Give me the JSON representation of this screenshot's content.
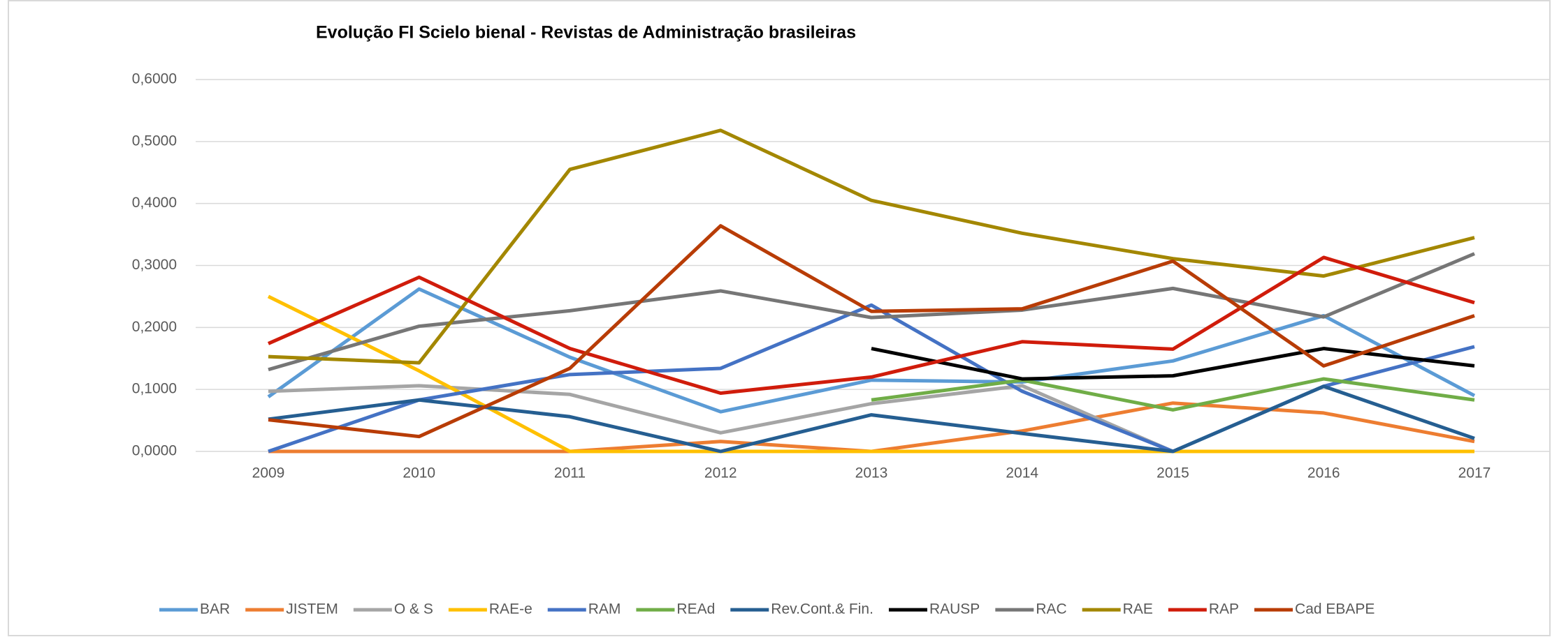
{
  "chart_data": {
    "type": "line",
    "title": "Evolução FI Scielo bienal - Revistas de Administração brasileiras",
    "categories": [
      "2009",
      "2010",
      "2011",
      "2012",
      "2013",
      "2014",
      "2015",
      "2016",
      "2017"
    ],
    "ylim": [
      0,
      0.6
    ],
    "yticks": [
      {
        "value": 0,
        "label": "0,0000"
      },
      {
        "value": 0.1,
        "label": "0,1000"
      },
      {
        "value": 0.2,
        "label": "0,2000"
      },
      {
        "value": 0.3,
        "label": "0,3000"
      },
      {
        "value": 0.4,
        "label": "0,4000"
      },
      {
        "value": 0.5,
        "label": "0,5000"
      },
      {
        "value": 0.6,
        "label": "0,6000"
      }
    ],
    "grid": true,
    "legend": "bottom",
    "series": [
      {
        "name": "BAR",
        "color": "#5b9bd5",
        "values": [
          0.088,
          0.262,
          0.152,
          0.064,
          0.115,
          0.112,
          0.146,
          0.219,
          0.09
        ]
      },
      {
        "name": "JISTEM",
        "color": "#ed7d31",
        "values": [
          0,
          0,
          0,
          0.016,
          0,
          0.033,
          0.078,
          0.062,
          0.016
        ]
      },
      {
        "name": "O & S",
        "color": "#a5a5a5",
        "values": [
          0.097,
          0.106,
          0.092,
          0.03,
          0.077,
          0.106,
          0,
          0,
          0
        ]
      },
      {
        "name": "RAE-e",
        "color": "#ffc000",
        "values": [
          0.25,
          0.13,
          0,
          0,
          0,
          0,
          0,
          0,
          0
        ]
      },
      {
        "name": "RAM",
        "color": "#4472c4",
        "values": [
          0,
          0.083,
          0.124,
          0.134,
          0.236,
          0.097,
          0,
          0.105,
          0.169
        ]
      },
      {
        "name": "REAd",
        "color": "#70ad47",
        "values": [
          null,
          null,
          null,
          null,
          0.083,
          0.115,
          0.067,
          0.117,
          0.083
        ]
      },
      {
        "name": "Rev.Cont.& Fin.",
        "color": "#255e91",
        "values": [
          0.052,
          0.083,
          0.056,
          0,
          0.059,
          0.029,
          0,
          0.105,
          0.021
        ]
      },
      {
        "name": "RAUSP",
        "color": "#000000",
        "values": [
          null,
          null,
          null,
          null,
          0.166,
          0.117,
          0.122,
          0.166,
          0.138
        ]
      },
      {
        "name": "RAC",
        "color": "#767676",
        "values": [
          0.132,
          0.202,
          0.227,
          0.259,
          0.216,
          0.228,
          0.263,
          0.217,
          0.319
        ]
      },
      {
        "name": "RAE",
        "color": "#a38700",
        "values": [
          0.153,
          0.143,
          0.455,
          0.518,
          0.405,
          0.352,
          0.311,
          0.283,
          0.345
        ]
      },
      {
        "name": "RAP",
        "color": "#d01c0b",
        "values": [
          0.174,
          0.281,
          0.166,
          0.094,
          0.12,
          0.177,
          0.165,
          0.313,
          0.24
        ]
      },
      {
        "name": "Cad EBAPE",
        "color": "#b83c06",
        "values": [
          0.051,
          0.024,
          0.134,
          0.364,
          0.226,
          0.23,
          0.307,
          0.138,
          0.219
        ]
      }
    ]
  }
}
